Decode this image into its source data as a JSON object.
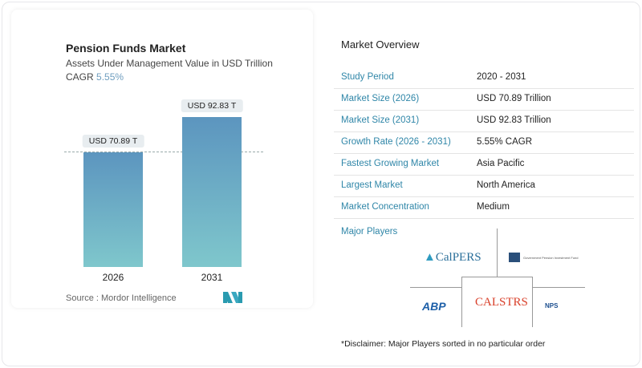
{
  "chart_data": {
    "type": "bar",
    "title": "Pension Funds Market",
    "subtitle": "Assets Under Management Value in USD Trillion",
    "cagr_label": "CAGR",
    "cagr_value": "5.55%",
    "categories": [
      "2026",
      "2031"
    ],
    "values": [
      70.89,
      92.83
    ],
    "data_labels": [
      "USD 70.89 T",
      "USD 92.83 T"
    ],
    "ylim": [
      0,
      92.83
    ],
    "grid": false,
    "bar_color": "#5c95bf",
    "source": "Source :  Mordor Intelligence"
  },
  "overview": {
    "title": "Market Overview",
    "rows": [
      {
        "label": "Study Period",
        "value": "2020 - 2031"
      },
      {
        "label": "Market Size (2026)",
        "value": "USD 70.89 Trillion"
      },
      {
        "label": "Market Size (2031)",
        "value": "USD 92.83 Trillion"
      },
      {
        "label": "Growth Rate (2026 - 2031)",
        "value": "5.55% CAGR"
      },
      {
        "label": "Fastest Growing Market",
        "value": "Asia Pacific"
      },
      {
        "label": "Largest Market",
        "value": "North America"
      },
      {
        "label": "Market Concentration",
        "value": "Medium"
      }
    ],
    "major_players_label": "Major Players",
    "players": [
      "CalPERS",
      "Government Pension Investment Fund",
      "ABP",
      "CALSTRS",
      "NPS"
    ],
    "disclaimer": "*Disclaimer: Major Players sorted in no particular order"
  }
}
